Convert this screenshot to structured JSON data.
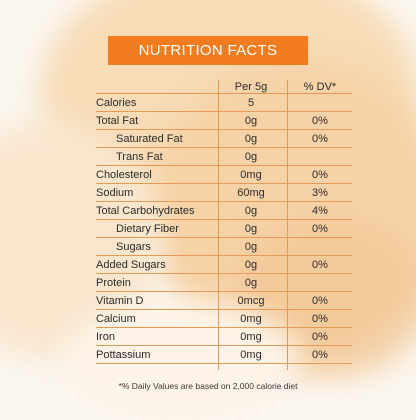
{
  "title": "NUTRITION FACTS",
  "columns": {
    "per": "Per 5g",
    "dv": "% DV*"
  },
  "rows": [
    {
      "name": "Calories",
      "amount": "5",
      "dv": "",
      "indent": false
    },
    {
      "name": "Total Fat",
      "amount": "0g",
      "dv": "0%",
      "indent": false
    },
    {
      "name": "Saturated Fat",
      "amount": "0g",
      "dv": "0%",
      "indent": true
    },
    {
      "name": "Trans Fat",
      "amount": "0g",
      "dv": "",
      "indent": true
    },
    {
      "name": "Cholesterol",
      "amount": "0mg",
      "dv": "0%",
      "indent": false
    },
    {
      "name": "Sodium",
      "amount": "60mg",
      "dv": "3%",
      "indent": false
    },
    {
      "name": "Total Carbohydrates",
      "amount": "0g",
      "dv": "4%",
      "indent": false
    },
    {
      "name": "Dietary Fiber",
      "amount": "0g",
      "dv": "0%",
      "indent": true
    },
    {
      "name": "Sugars",
      "amount": "0g",
      "dv": "",
      "indent": true
    },
    {
      "name": "Added Sugars",
      "amount": "0g",
      "dv": "0%",
      "indent": false
    },
    {
      "name": "Protein",
      "amount": "0g",
      "dv": "",
      "indent": false
    },
    {
      "name": "Vitamin D",
      "amount": "0mcg",
      "dv": "0%",
      "indent": false
    },
    {
      "name": "Calcium",
      "amount": "0mg",
      "dv": "0%",
      "indent": false
    },
    {
      "name": "Iron",
      "amount": "0mg",
      "dv": "0%",
      "indent": false
    },
    {
      "name": "Pottassium",
      "amount": "0mg",
      "dv": "0%",
      "indent": false
    }
  ],
  "footnote": "*% Daily Values are based on 2,000 calorie diet",
  "colors": {
    "accent": "#f37c1f",
    "rule": "#e79a55",
    "text": "#2b2b2b"
  }
}
